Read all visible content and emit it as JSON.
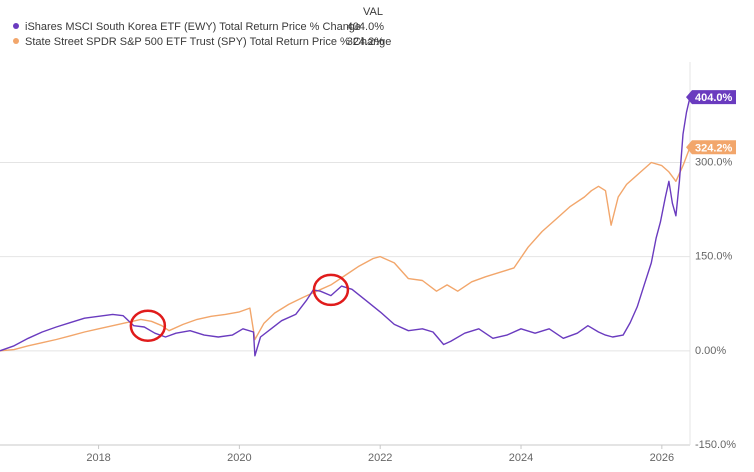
{
  "chart_data": {
    "type": "line",
    "legend_header": "VAL",
    "legend_position": "top-left",
    "grid": "horizontal",
    "x_ticks": [
      "2018",
      "2020",
      "2022",
      "2024",
      "2026"
    ],
    "x_range": [
      2016.6,
      2026.4
    ],
    "y_ticks": [
      "300.0%",
      "150.0%",
      "0.00%",
      "-150.0%"
    ],
    "y_tick_values": [
      300,
      150,
      0,
      -150
    ],
    "ylim": [
      -150,
      460
    ],
    "series": [
      {
        "name": "iShares MSCI South Korea ETF (EWY) Total Return Price % Change",
        "last_value": "404.0%",
        "color": "#6a3bbf",
        "x": [
          2016.6,
          2016.8,
          2017.0,
          2017.2,
          2017.4,
          2017.6,
          2017.8,
          2018.0,
          2018.2,
          2018.35,
          2018.5,
          2018.65,
          2018.8,
          2018.95,
          2019.1,
          2019.3,
          2019.5,
          2019.7,
          2019.9,
          2020.05,
          2020.2,
          2020.22,
          2020.3,
          2020.45,
          2020.6,
          2020.8,
          2020.95,
          2021.05,
          2021.15,
          2021.3,
          2021.45,
          2021.6,
          2021.8,
          2022.0,
          2022.2,
          2022.4,
          2022.6,
          2022.75,
          2022.9,
          2023.0,
          2023.2,
          2023.4,
          2023.6,
          2023.8,
          2024.0,
          2024.2,
          2024.4,
          2024.6,
          2024.8,
          2024.95,
          2025.1,
          2025.2,
          2025.3,
          2025.45,
          2025.55,
          2025.65,
          2025.75,
          2025.85,
          2025.92,
          2025.98,
          2026.05,
          2026.1,
          2026.15,
          2026.2,
          2026.25,
          2026.3,
          2026.35,
          2026.4
        ],
        "y": [
          0,
          8,
          20,
          30,
          38,
          45,
          52,
          55,
          58,
          56,
          40,
          38,
          28,
          22,
          28,
          32,
          25,
          22,
          25,
          35,
          30,
          -8,
          22,
          35,
          48,
          58,
          80,
          97,
          95,
          88,
          103,
          98,
          80,
          62,
          42,
          32,
          35,
          30,
          10,
          15,
          28,
          35,
          20,
          25,
          35,
          28,
          35,
          20,
          28,
          40,
          30,
          25,
          22,
          25,
          45,
          70,
          105,
          140,
          180,
          205,
          245,
          270,
          235,
          215,
          270,
          345,
          380,
          404
        ]
      },
      {
        "name": "State Street SPDR S&P 500 ETF Trust (SPY) Total Return Price % Change",
        "last_value": "324.2%",
        "color": "#f2a66b",
        "x": [
          2016.6,
          2016.8,
          2017.0,
          2017.2,
          2017.4,
          2017.6,
          2017.8,
          2018.0,
          2018.2,
          2018.4,
          2018.6,
          2018.75,
          2018.9,
          2019.0,
          2019.2,
          2019.4,
          2019.6,
          2019.8,
          2020.0,
          2020.15,
          2020.22,
          2020.35,
          2020.5,
          2020.7,
          2020.9,
          2021.1,
          2021.3,
          2021.5,
          2021.7,
          2021.9,
          2022.0,
          2022.2,
          2022.4,
          2022.6,
          2022.8,
          2022.95,
          2023.1,
          2023.3,
          2023.5,
          2023.7,
          2023.9,
          2024.1,
          2024.3,
          2024.5,
          2024.7,
          2024.9,
          2025.0,
          2025.1,
          2025.2,
          2025.28,
          2025.38,
          2025.5,
          2025.7,
          2025.85,
          2026.0,
          2026.1,
          2026.2,
          2026.3,
          2026.4
        ],
        "y": [
          0,
          2,
          8,
          13,
          18,
          24,
          30,
          35,
          40,
          45,
          50,
          47,
          40,
          32,
          42,
          50,
          55,
          58,
          62,
          68,
          18,
          44,
          60,
          74,
          85,
          95,
          105,
          120,
          135,
          147,
          150,
          140,
          115,
          112,
          95,
          105,
          95,
          110,
          118,
          125,
          132,
          165,
          190,
          210,
          230,
          245,
          255,
          262,
          255,
          200,
          245,
          265,
          285,
          300,
          295,
          285,
          270,
          295,
          324.2
        ]
      }
    ],
    "annotations": [
      {
        "type": "circle",
        "x": 2018.7,
        "y": 40
      },
      {
        "type": "circle",
        "x": 2021.3,
        "y": 97
      }
    ]
  }
}
